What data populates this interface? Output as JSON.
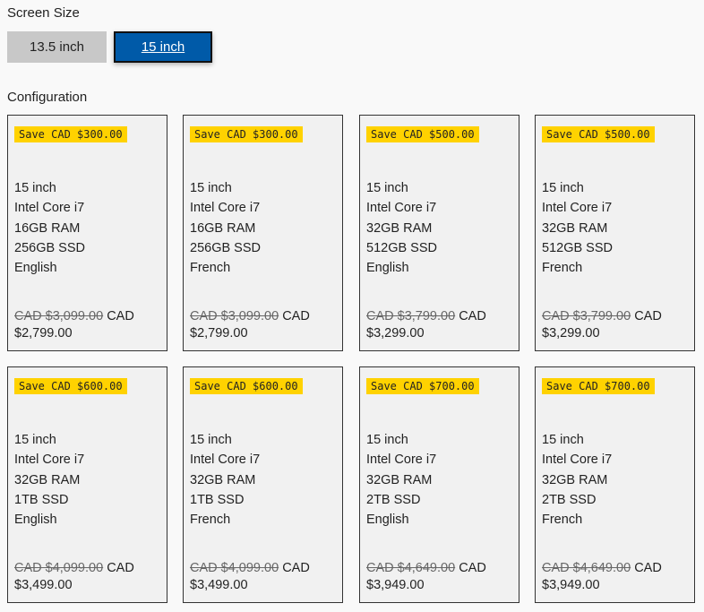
{
  "screen_size": {
    "label": "Screen Size",
    "options": [
      "13.5 inch",
      "15 inch"
    ],
    "selected": "15 inch"
  },
  "configuration": {
    "label": "Configuration",
    "cards": [
      {
        "badge": "Save CAD $300.00",
        "specs": [
          "15 inch",
          "Intel Core i7",
          "16GB RAM",
          "256GB SSD",
          "English"
        ],
        "old_price": "CAD $3,099.00",
        "currency": "CAD",
        "price": "$2,799.00"
      },
      {
        "badge": "Save CAD $300.00",
        "specs": [
          "15 inch",
          "Intel Core i7",
          "16GB RAM",
          "256GB SSD",
          "French"
        ],
        "old_price": "CAD $3,099.00",
        "currency": "CAD",
        "price": "$2,799.00"
      },
      {
        "badge": "Save CAD $500.00",
        "specs": [
          "15 inch",
          "Intel Core i7",
          "32GB RAM",
          "512GB SSD",
          "English"
        ],
        "old_price": "CAD $3,799.00",
        "currency": "CAD",
        "price": "$3,299.00"
      },
      {
        "badge": "Save CAD $500.00",
        "specs": [
          "15 inch",
          "Intel Core i7",
          "32GB RAM",
          "512GB SSD",
          "French"
        ],
        "old_price": "CAD $3,799.00",
        "currency": "CAD",
        "price": "$3,299.00"
      },
      {
        "badge": "Save CAD $600.00",
        "specs": [
          "15 inch",
          "Intel Core i7",
          "32GB RAM",
          "1TB SSD",
          "English"
        ],
        "old_price": "CAD $4,099.00",
        "currency": "CAD",
        "price": "$3,499.00"
      },
      {
        "badge": "Save CAD $600.00",
        "specs": [
          "15 inch",
          "Intel Core i7",
          "32GB RAM",
          "1TB SSD",
          "French"
        ],
        "old_price": "CAD $4,099.00",
        "currency": "CAD",
        "price": "$3,499.00"
      },
      {
        "badge": "Save CAD $700.00",
        "specs": [
          "15 inch",
          "Intel Core i7",
          "32GB RAM",
          "2TB SSD",
          "English"
        ],
        "old_price": "CAD $4,649.00",
        "currency": "CAD",
        "price": "$3,949.00"
      },
      {
        "badge": "Save CAD $700.00",
        "specs": [
          "15 inch",
          "Intel Core i7",
          "32GB RAM",
          "2TB SSD",
          "French"
        ],
        "old_price": "CAD $4,649.00",
        "currency": "CAD",
        "price": "$3,949.00"
      }
    ]
  },
  "colors": {
    "selected": "#005aa8",
    "badge": "#ffd200"
  }
}
